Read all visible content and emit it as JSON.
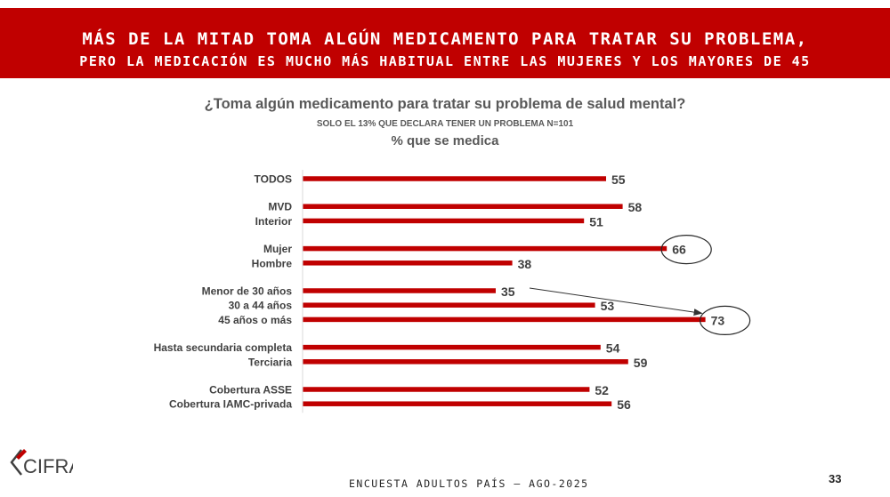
{
  "header": {
    "title_line1": "MÁS DE LA MITAD TOMA ALGÚN MEDICAMENTO PARA TRATAR SU PROBLEMA,",
    "title_line2": "PERO LA MEDICACIÓN ES MUCHO MÁS HABITUAL ENTRE LAS MUJERES Y LOS MAYORES DE 45"
  },
  "chart_data": {
    "type": "bar",
    "orientation": "horizontal",
    "title": "¿Toma algún medicamento para tratar su problema de salud mental?",
    "subtitle": "SOLO EL 13% QUE DECLARA TENER UN PROBLEMA N=101",
    "ylabel": "% que se medica",
    "xlim": [
      0,
      80
    ],
    "grid": false,
    "legend": "none",
    "bar_color": "#c00000",
    "categories": [
      "TODOS",
      "MVD",
      "Interior",
      "Mujer",
      "Hombre",
      "Menor de 30 años",
      "30 a 44 años",
      "45 años o más",
      "Hasta secundaria completa",
      "Terciaria",
      "Cobertura ASSE",
      "Cobertura IAMC-privada"
    ],
    "groups": [
      0,
      1,
      1,
      2,
      2,
      3,
      3,
      3,
      4,
      4,
      5,
      5
    ],
    "values": [
      55,
      58,
      51,
      66,
      38,
      35,
      53,
      73,
      54,
      59,
      52,
      56
    ],
    "highlighted": [
      "Mujer",
      "45 años o más"
    ],
    "arrow": {
      "from": "Menor de 30 años",
      "to": "45 años o más"
    }
  },
  "footer": {
    "logo_text": "CIFRA",
    "survey": "ENCUESTA ADULTOS PAÍS – AGO-2025",
    "page_number": "33"
  },
  "colors": {
    "brand_red": "#c00000",
    "text_gray": "#404040"
  }
}
